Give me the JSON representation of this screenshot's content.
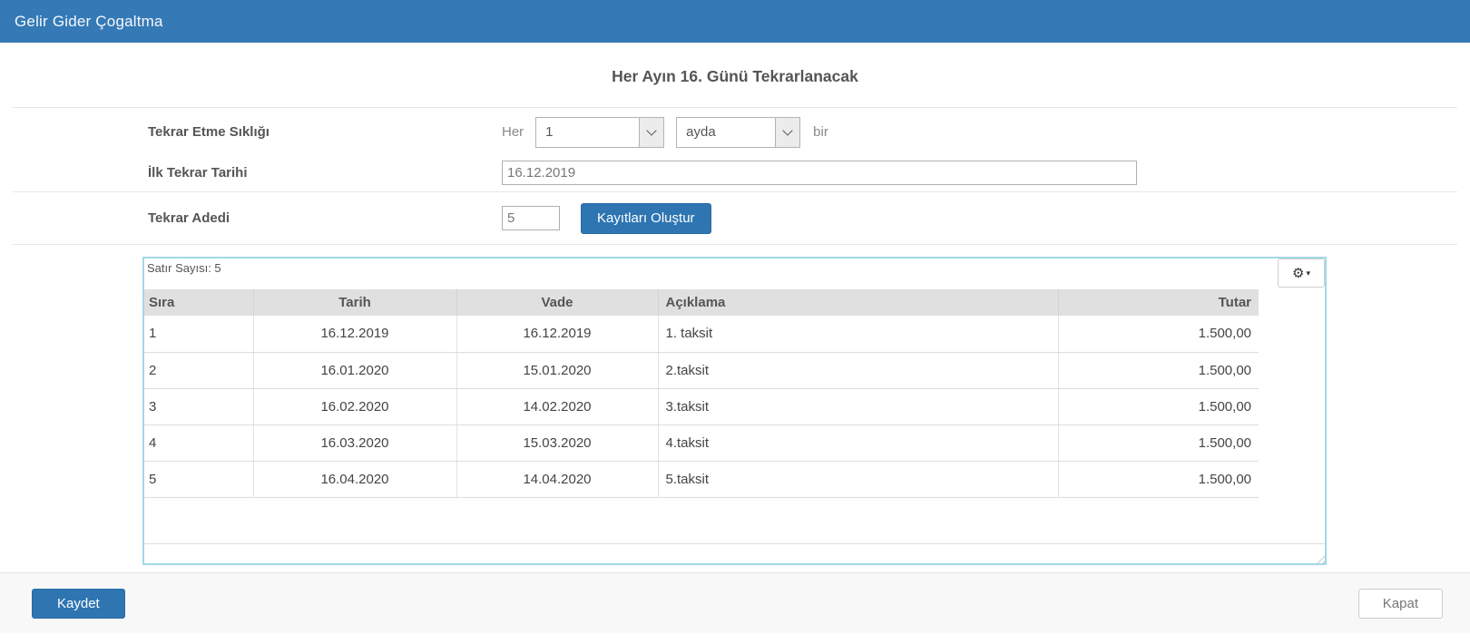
{
  "header": {
    "title": "Gelir Gider Çogaltma"
  },
  "main": {
    "title": "Her Ayın 16. Günü Tekrarlanacak",
    "form": {
      "frequency_label": "Tekrar Etme Sıklığı",
      "frequency_prefix": "Her",
      "frequency_interval_value": "1",
      "frequency_unit_value": "ayda",
      "frequency_suffix": "bir",
      "first_date_label": "İlk Tekrar Tarihi",
      "first_date_value": "16.12.2019",
      "repeat_count_label": "Tekrar Adedi",
      "repeat_count_value": "5",
      "create_records_button": "Kayıtları Oluştur"
    },
    "grid": {
      "row_count_label": "Satır Sayısı: 5",
      "settings_icon": "gear-icon",
      "columns": [
        "Sıra",
        "Tarih",
        "Vade",
        "Açıklama",
        "Tutar"
      ],
      "column_alignments": [
        "left",
        "center",
        "center",
        "left",
        "right"
      ],
      "rows": [
        [
          "1",
          "16.12.2019",
          "16.12.2019",
          "1. taksit",
          "1.500,00"
        ],
        [
          "2",
          "16.01.2020",
          "15.01.2020",
          "2.taksit",
          "1.500,00"
        ],
        [
          "3",
          "16.02.2020",
          "14.02.2020",
          "3.taksit",
          "1.500,00"
        ],
        [
          "4",
          "16.03.2020",
          "15.03.2020",
          "4.taksit",
          "1.500,00"
        ],
        [
          "5",
          "16.04.2020",
          "14.04.2020",
          "5.taksit",
          "1.500,00"
        ]
      ]
    },
    "footer": {
      "save_label": "Kaydet",
      "close_label": "Kapat"
    }
  },
  "colors": {
    "header_bg": "#3579b6",
    "primary_button": "#2e75b2",
    "panel_border": "#a2d8e8",
    "table_header_bg": "#e0e0e0"
  }
}
